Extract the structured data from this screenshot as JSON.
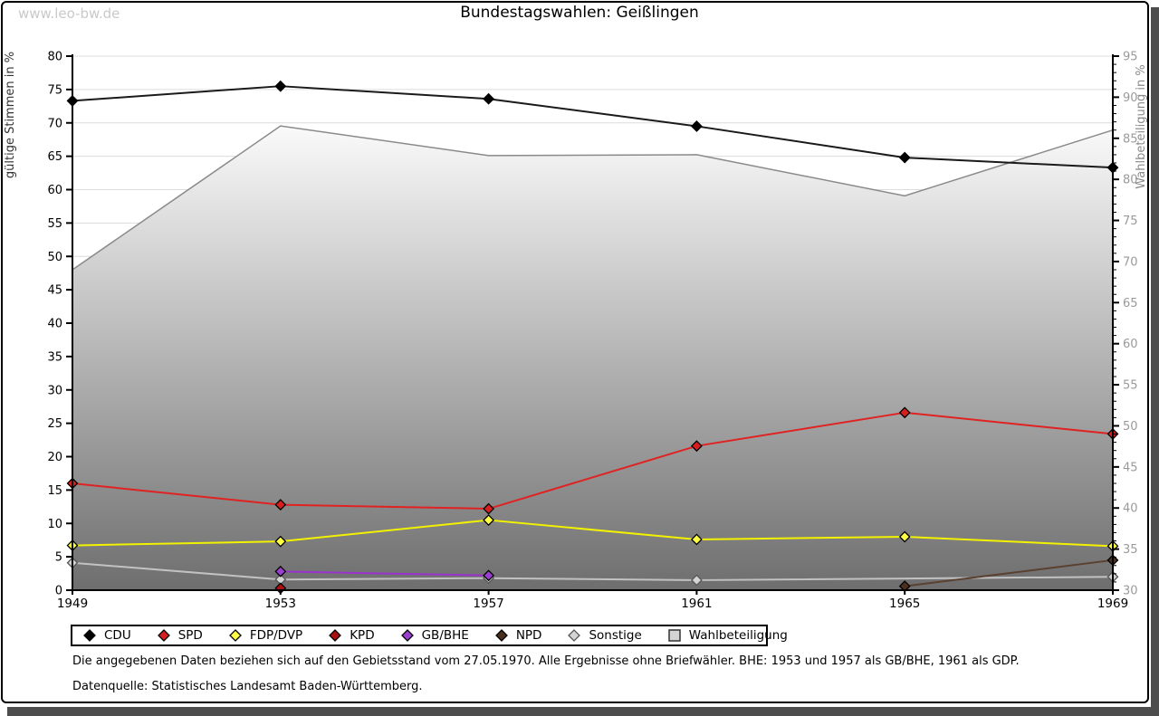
{
  "watermark": "www.leo-bw.de",
  "title": "Bundestagswahlen: Geißlingen",
  "chart_data": {
    "type": "line",
    "x": [
      1949,
      1953,
      1957,
      1961,
      1965,
      1969
    ],
    "left_axis": {
      "label": "gültige Stimmen in %",
      "min": 0,
      "max": 80,
      "step": 5
    },
    "right_axis": {
      "label": "Wahlbeteiligung in %",
      "min": 30,
      "max": 95,
      "step": 5,
      "minor_step": 1
    },
    "grid": true,
    "legend_position": "bottom",
    "series": [
      {
        "name": "CDU",
        "type": "line",
        "axis": "left",
        "line_color": "#1a1a1a",
        "marker_color": "#000000",
        "marker_stroke": "#000000",
        "values": [
          73.3,
          75.5,
          73.6,
          69.5,
          64.8,
          63.3
        ]
      },
      {
        "name": "SPD",
        "type": "line",
        "axis": "left",
        "line_color": "#e02222",
        "marker_color": "#d81e1e",
        "marker_stroke": "#000000",
        "values": [
          16.0,
          12.8,
          12.2,
          21.6,
          26.6,
          23.4
        ]
      },
      {
        "name": "FDP/DVP",
        "type": "line",
        "axis": "left",
        "line_color": "#f2f200",
        "marker_color": "#ffff44",
        "marker_stroke": "#000000",
        "values": [
          6.7,
          7.3,
          10.5,
          7.6,
          8.0,
          6.6
        ]
      },
      {
        "name": "KPD",
        "type": "line",
        "axis": "left",
        "line_color": "#aa1111",
        "marker_color": "#aa1111",
        "marker_stroke": "#000000",
        "values": [
          null,
          0.3,
          null,
          null,
          null,
          null
        ]
      },
      {
        "name": "GB/BHE",
        "type": "line",
        "axis": "left",
        "line_color": "#9933cc",
        "marker_color": "#9b3fd1",
        "marker_stroke": "#000000",
        "values": [
          null,
          2.8,
          2.2,
          null,
          null,
          null
        ]
      },
      {
        "name": "NPD",
        "type": "line",
        "axis": "left",
        "line_color": "#5a4030",
        "marker_color": "#4a2f1f",
        "marker_stroke": "#000000",
        "values": [
          null,
          null,
          null,
          null,
          0.6,
          4.5
        ]
      },
      {
        "name": "Sonstige",
        "type": "line",
        "axis": "left",
        "line_color": "#c2c2c2",
        "marker_color": "#d4d4d4",
        "marker_stroke": "#555555",
        "values": [
          4.1,
          1.6,
          1.8,
          1.5,
          null,
          2.0
        ]
      },
      {
        "name": "Wahlbeteiligung",
        "type": "area",
        "axis": "right",
        "line_color": "#8a8a8a",
        "fill_top": "#fafafa",
        "fill_bottom": "#6e6e6e",
        "values": [
          69.0,
          86.5,
          82.9,
          83.0,
          78.0,
          86.0
        ]
      }
    ]
  },
  "footnotes": {
    "line1": "Die angegebenen Daten beziehen sich auf den Gebietsstand vom 27.05.1970. Alle Ergebnisse ohne Briefwähler. BHE: 1953 und 1957 als GB/BHE, 1961 als GDP.",
    "line2": "Datenquelle: Statistisches Landesamt Baden-Württemberg."
  }
}
